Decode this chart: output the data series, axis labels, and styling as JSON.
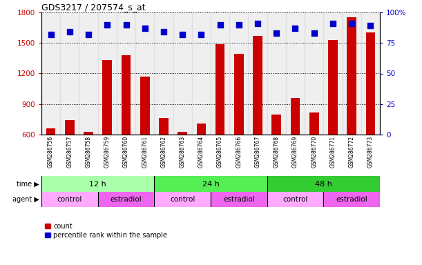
{
  "title": "GDS3217 / 207574_s_at",
  "samples": [
    "GSM286756",
    "GSM286757",
    "GSM286758",
    "GSM286759",
    "GSM286760",
    "GSM286761",
    "GSM286762",
    "GSM286763",
    "GSM286764",
    "GSM286765",
    "GSM286766",
    "GSM286767",
    "GSM286768",
    "GSM286769",
    "GSM286770",
    "GSM286771",
    "GSM286772",
    "GSM286773"
  ],
  "counts": [
    660,
    740,
    630,
    1330,
    1380,
    1170,
    760,
    625,
    710,
    1490,
    1390,
    1570,
    800,
    960,
    820,
    1530,
    1750,
    1600
  ],
  "percentile_ranks": [
    82,
    84,
    82,
    90,
    90,
    87,
    84,
    82,
    82,
    90,
    90,
    91,
    83,
    87,
    83,
    91,
    91,
    89
  ],
  "bar_color": "#cc0000",
  "dot_color": "#0000cc",
  "ylim_left": [
    600,
    1800
  ],
  "ylim_right": [
    0,
    100
  ],
  "yticks_left": [
    600,
    900,
    1200,
    1500,
    1800
  ],
  "yticks_right": [
    0,
    25,
    50,
    75,
    100
  ],
  "time_groups": [
    {
      "label": "12 h",
      "start": 0,
      "end": 6,
      "color": "#aaffaa"
    },
    {
      "label": "24 h",
      "start": 6,
      "end": 12,
      "color": "#55ee55"
    },
    {
      "label": "48 h",
      "start": 12,
      "end": 18,
      "color": "#33cc33"
    }
  ],
  "agent_groups": [
    {
      "label": "control",
      "start": 0,
      "end": 3,
      "color": "#ffaaff"
    },
    {
      "label": "estradiol",
      "start": 3,
      "end": 6,
      "color": "#ee66ee"
    },
    {
      "label": "control",
      "start": 6,
      "end": 9,
      "color": "#ffaaff"
    },
    {
      "label": "estradiol",
      "start": 9,
      "end": 12,
      "color": "#ee66ee"
    },
    {
      "label": "control",
      "start": 12,
      "end": 15,
      "color": "#ffaaff"
    },
    {
      "label": "estradiol",
      "start": 15,
      "end": 18,
      "color": "#ee66ee"
    }
  ],
  "time_label": "time",
  "agent_label": "agent",
  "legend_count_label": "count",
  "legend_pct_label": "percentile rank within the sample",
  "bar_width": 0.5,
  "col_bg_even": "#e8e8e8",
  "col_bg_odd": "#d8d8d8"
}
